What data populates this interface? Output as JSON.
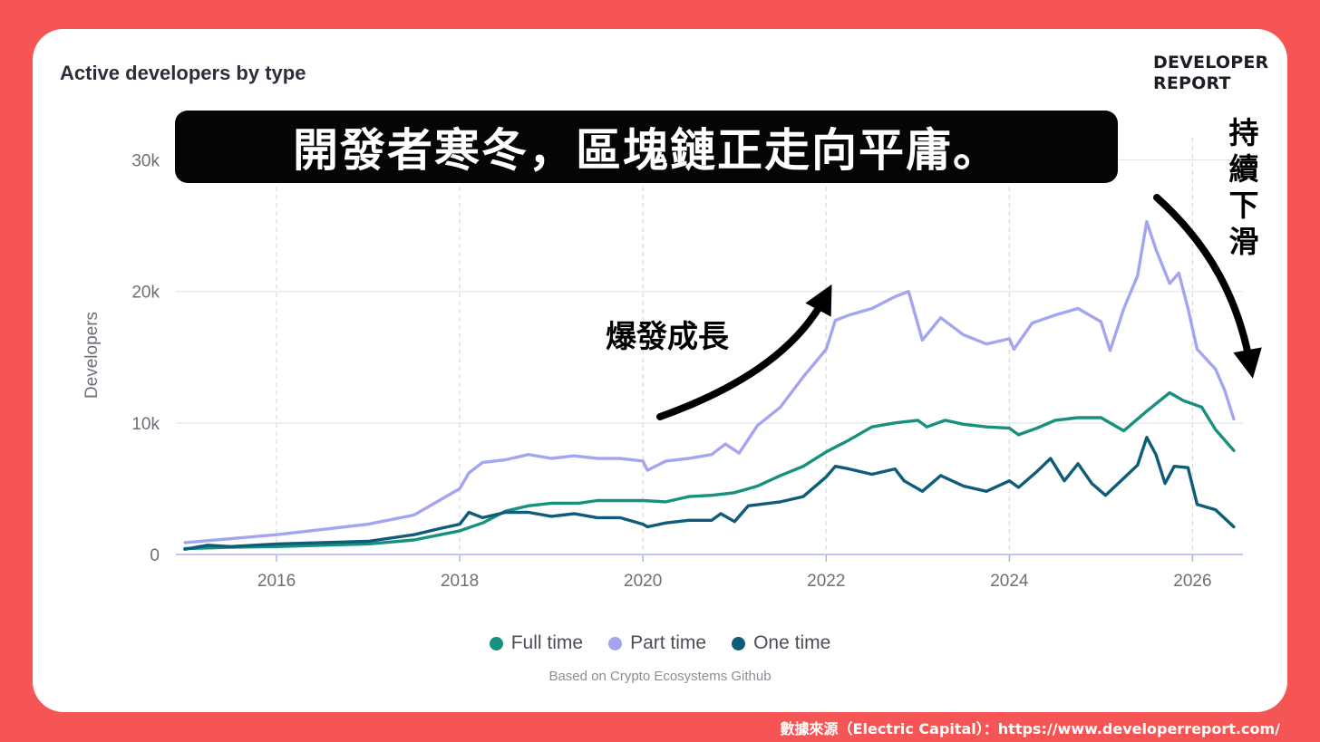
{
  "headline": "開發者寒冬，區塊鏈正走向平庸。",
  "annotations": {
    "boom": "爆發成長",
    "decline": "持續下滑"
  },
  "brand": {
    "line1": "DEVELOPER",
    "line2": "REPORT"
  },
  "footer": "數據來源（Electric Capital）：https://www.developerreport.com/",
  "source_note": "Based on Crypto Ecosystems Github",
  "colors": {
    "background": "#f65555",
    "full_time": "#17907d",
    "part_time": "#a3a6ef",
    "one_time": "#0e5c78"
  },
  "chart_data": {
    "type": "line",
    "title": "Active developers by type",
    "ylabel": "Developers",
    "xlabel": "",
    "ylim": [
      0,
      31000
    ],
    "xlim": [
      2015.0,
      2026.55
    ],
    "yticks": [
      0,
      10000,
      20000,
      30000
    ],
    "ytick_labels": [
      "0",
      "10k",
      "20k",
      "30k"
    ],
    "xticks": [
      2016,
      2018,
      2020,
      2022,
      2024,
      2026
    ],
    "xtick_labels": [
      "2016",
      "2018",
      "2020",
      "2022",
      "2024",
      "2026"
    ],
    "grid": "both (dashed vertical, solid horizontal)",
    "legend": "bottom-center",
    "series": [
      {
        "name": "Full time",
        "color": "#17907d",
        "points": [
          [
            2015.0,
            450
          ],
          [
            2015.5,
            550
          ],
          [
            2016.0,
            600
          ],
          [
            2016.5,
            700
          ],
          [
            2017.0,
            800
          ],
          [
            2017.5,
            1100
          ],
          [
            2018.0,
            1800
          ],
          [
            2018.25,
            2400
          ],
          [
            2018.5,
            3300
          ],
          [
            2018.75,
            3700
          ],
          [
            2019.0,
            3900
          ],
          [
            2019.3,
            3900
          ],
          [
            2019.5,
            4100
          ],
          [
            2020.0,
            4100
          ],
          [
            2020.25,
            4000
          ],
          [
            2020.5,
            4400
          ],
          [
            2020.75,
            4500
          ],
          [
            2021.0,
            4700
          ],
          [
            2021.25,
            5200
          ],
          [
            2021.5,
            6000
          ],
          [
            2021.75,
            6700
          ],
          [
            2022.0,
            7800
          ],
          [
            2022.25,
            8700
          ],
          [
            2022.5,
            9700
          ],
          [
            2022.75,
            10000
          ],
          [
            2023.0,
            10200
          ],
          [
            2023.1,
            9700
          ],
          [
            2023.3,
            10200
          ],
          [
            2023.5,
            9900
          ],
          [
            2023.75,
            9700
          ],
          [
            2024.0,
            9600
          ],
          [
            2024.1,
            9100
          ],
          [
            2024.3,
            9600
          ],
          [
            2024.5,
            10200
          ],
          [
            2024.75,
            10400
          ],
          [
            2025.0,
            10400
          ],
          [
            2025.25,
            9400
          ],
          [
            2025.5,
            10900
          ],
          [
            2025.75,
            12300
          ],
          [
            2025.9,
            11700
          ],
          [
            2026.1,
            11200
          ],
          [
            2026.25,
            9500
          ],
          [
            2026.45,
            7900
          ]
        ]
      },
      {
        "name": "Part time",
        "color": "#a3a6ef",
        "points": [
          [
            2015.0,
            900
          ],
          [
            2015.5,
            1200
          ],
          [
            2016.0,
            1500
          ],
          [
            2016.5,
            1900
          ],
          [
            2017.0,
            2300
          ],
          [
            2017.5,
            3000
          ],
          [
            2017.8,
            4200
          ],
          [
            2018.0,
            5000
          ],
          [
            2018.1,
            6200
          ],
          [
            2018.25,
            7000
          ],
          [
            2018.5,
            7200
          ],
          [
            2018.75,
            7600
          ],
          [
            2019.0,
            7300
          ],
          [
            2019.25,
            7500
          ],
          [
            2019.5,
            7300
          ],
          [
            2019.75,
            7300
          ],
          [
            2020.0,
            7100
          ],
          [
            2020.05,
            6400
          ],
          [
            2020.25,
            7100
          ],
          [
            2020.5,
            7300
          ],
          [
            2020.75,
            7600
          ],
          [
            2020.9,
            8400
          ],
          [
            2021.05,
            7700
          ],
          [
            2021.25,
            9800
          ],
          [
            2021.5,
            11200
          ],
          [
            2021.75,
            13500
          ],
          [
            2022.0,
            15600
          ],
          [
            2022.1,
            17800
          ],
          [
            2022.25,
            18200
          ],
          [
            2022.5,
            18700
          ],
          [
            2022.75,
            19600
          ],
          [
            2022.9,
            20000
          ],
          [
            2023.05,
            16300
          ],
          [
            2023.25,
            18000
          ],
          [
            2023.5,
            16700
          ],
          [
            2023.75,
            16000
          ],
          [
            2024.0,
            16400
          ],
          [
            2024.05,
            15600
          ],
          [
            2024.25,
            17600
          ],
          [
            2024.5,
            18200
          ],
          [
            2024.75,
            18700
          ],
          [
            2025.0,
            17700
          ],
          [
            2025.1,
            15500
          ],
          [
            2025.25,
            18700
          ],
          [
            2025.4,
            21200
          ],
          [
            2025.5,
            25300
          ],
          [
            2025.6,
            23200
          ],
          [
            2025.75,
            20600
          ],
          [
            2025.85,
            21400
          ],
          [
            2025.95,
            18700
          ],
          [
            2026.05,
            15600
          ],
          [
            2026.25,
            14100
          ],
          [
            2026.35,
            12500
          ],
          [
            2026.45,
            10300
          ]
        ]
      },
      {
        "name": "One time",
        "color": "#0e5c78",
        "points": [
          [
            2015.0,
            400
          ],
          [
            2015.25,
            700
          ],
          [
            2015.5,
            600
          ],
          [
            2016.0,
            800
          ],
          [
            2016.5,
            900
          ],
          [
            2017.0,
            1000
          ],
          [
            2017.5,
            1500
          ],
          [
            2017.8,
            2000
          ],
          [
            2018.0,
            2300
          ],
          [
            2018.1,
            3200
          ],
          [
            2018.25,
            2800
          ],
          [
            2018.5,
            3200
          ],
          [
            2018.75,
            3200
          ],
          [
            2019.0,
            2900
          ],
          [
            2019.25,
            3100
          ],
          [
            2019.5,
            2800
          ],
          [
            2019.75,
            2800
          ],
          [
            2020.0,
            2300
          ],
          [
            2020.05,
            2100
          ],
          [
            2020.25,
            2400
          ],
          [
            2020.5,
            2600
          ],
          [
            2020.75,
            2600
          ],
          [
            2020.85,
            3100
          ],
          [
            2021.0,
            2500
          ],
          [
            2021.15,
            3700
          ],
          [
            2021.5,
            4000
          ],
          [
            2021.75,
            4400
          ],
          [
            2022.0,
            5900
          ],
          [
            2022.1,
            6700
          ],
          [
            2022.25,
            6500
          ],
          [
            2022.5,
            6100
          ],
          [
            2022.75,
            6500
          ],
          [
            2022.85,
            5600
          ],
          [
            2023.05,
            4800
          ],
          [
            2023.25,
            6000
          ],
          [
            2023.5,
            5200
          ],
          [
            2023.75,
            4800
          ],
          [
            2024.0,
            5600
          ],
          [
            2024.1,
            5100
          ],
          [
            2024.3,
            6300
          ],
          [
            2024.45,
            7300
          ],
          [
            2024.6,
            5600
          ],
          [
            2024.75,
            6900
          ],
          [
            2024.9,
            5400
          ],
          [
            2025.05,
            4500
          ],
          [
            2025.25,
            5800
          ],
          [
            2025.4,
            6800
          ],
          [
            2025.5,
            8900
          ],
          [
            2025.6,
            7600
          ],
          [
            2025.7,
            5400
          ],
          [
            2025.8,
            6700
          ],
          [
            2025.95,
            6600
          ],
          [
            2026.05,
            3800
          ],
          [
            2026.25,
            3400
          ],
          [
            2026.45,
            2100
          ]
        ]
      }
    ]
  }
}
